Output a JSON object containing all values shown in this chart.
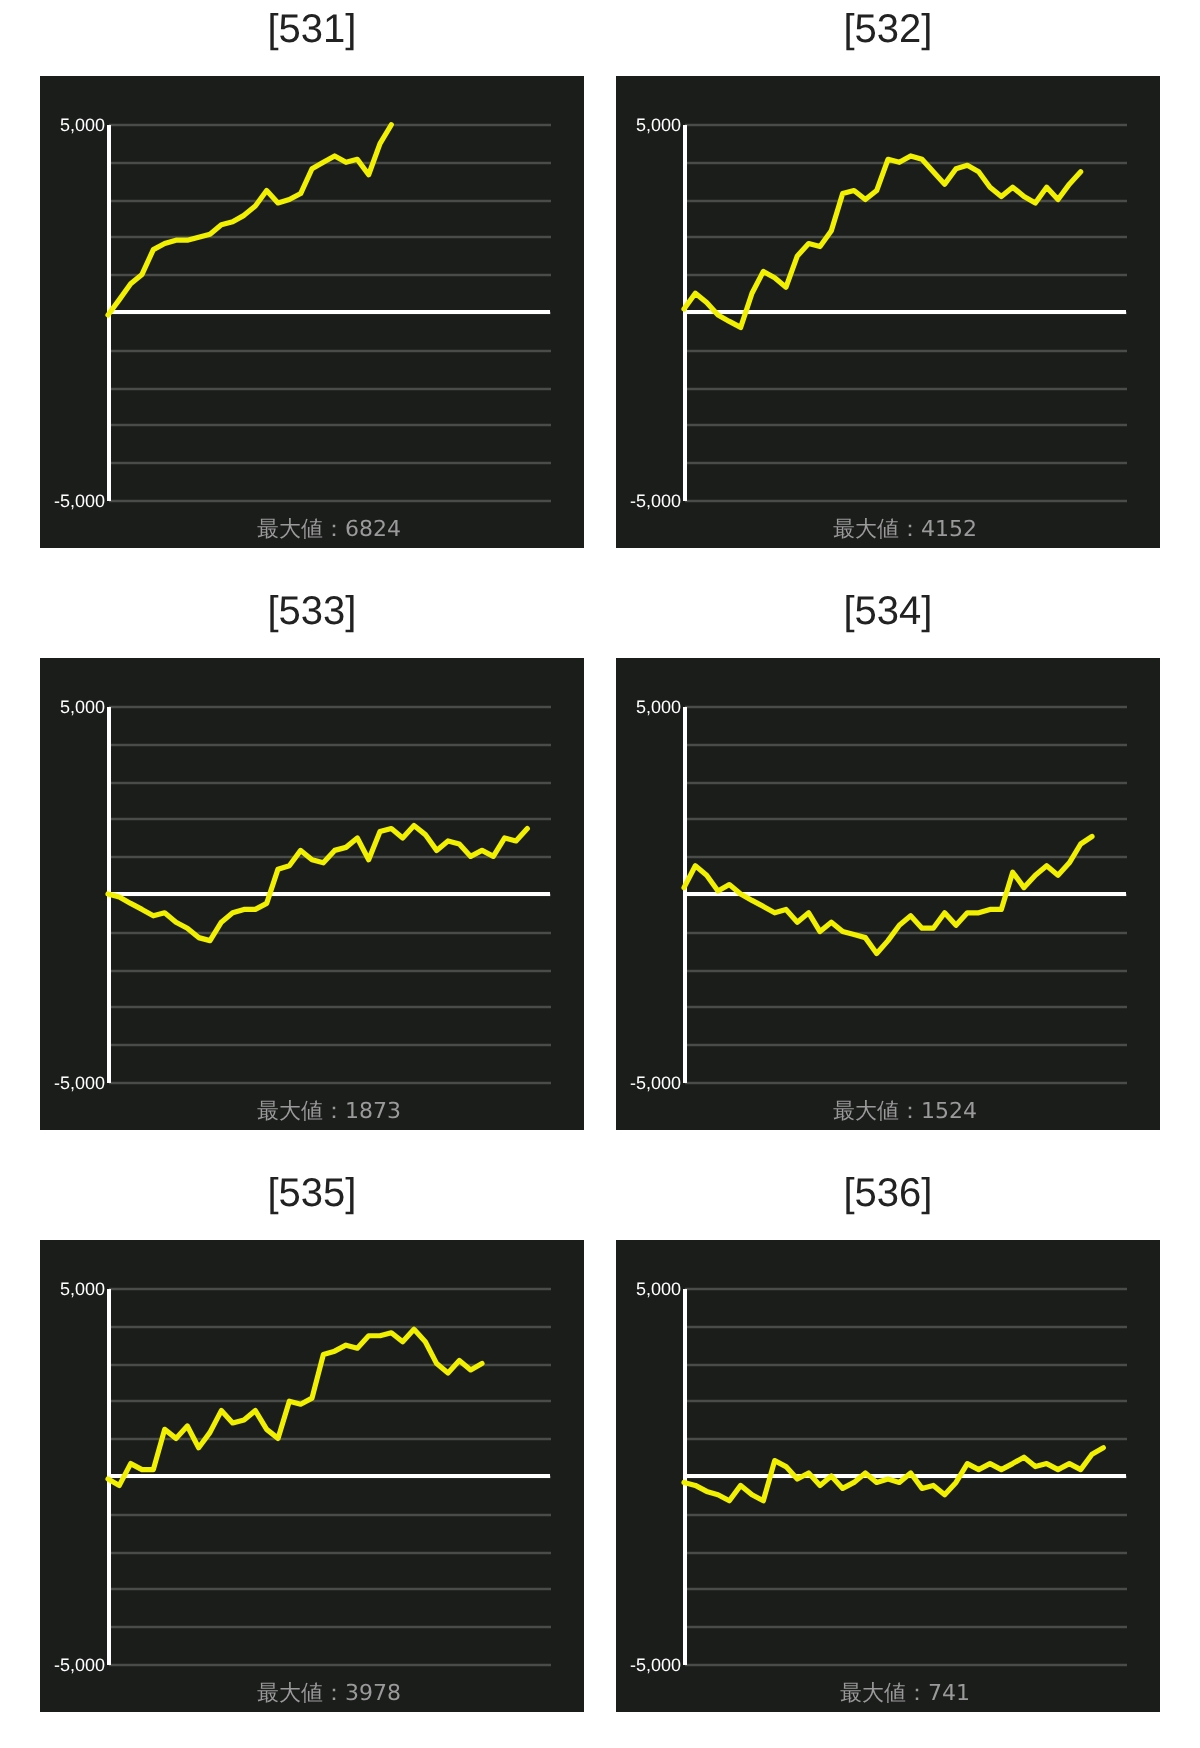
{
  "chart_data": [
    {
      "type": "line",
      "title": "[531]",
      "annotations": [
        "最大値：6824"
      ],
      "color": "#f0f000",
      "ylim": [
        -5000,
        5000
      ],
      "yticks": [
        {
          "value": -5000,
          "label": "-5,000"
        },
        {
          "value": -4000,
          "label": null
        },
        {
          "value": -3000,
          "label": null
        },
        {
          "value": -2000,
          "label": null
        },
        {
          "value": -1000,
          "label": null
        },
        {
          "value": 0,
          "label": null
        },
        {
          "value": 1000,
          "label": null
        },
        {
          "value": 2000,
          "label": null
        },
        {
          "value": 3000,
          "label": null
        },
        {
          "value": 4000,
          "label": null
        },
        {
          "value": 5000,
          "label": "5,000"
        }
      ],
      "grid": "y",
      "tick_labels": "y",
      "ref_lines": [
        {
          "axis": "y",
          "value": 0,
          "color": "#ffffff"
        }
      ],
      "categories": [
        null,
        null,
        null,
        null,
        null,
        null,
        null,
        null,
        null,
        null,
        null,
        null,
        null,
        null,
        null,
        null,
        null,
        null,
        null,
        null,
        null,
        null,
        null,
        null,
        null,
        null,
        null,
        null,
        null,
        null,
        null,
        null,
        null,
        null,
        null,
        null,
        null,
        null,
        null,
        null
      ],
      "values": [
        -80,
        330,
        750,
        1000,
        1660,
        1820,
        1910,
        1910,
        1990,
        2070,
        2320,
        2400,
        2570,
        2820,
        3230,
        2900,
        2990,
        3150,
        3810,
        3980,
        4150,
        3980,
        4060,
        3650,
        4480,
        4980,
        null,
        null,
        null,
        null,
        null,
        null,
        null,
        null,
        null,
        null,
        null,
        null,
        null,
        null
      ]
    },
    {
      "type": "line",
      "title": "[532]",
      "annotations": [
        "最大値：4152"
      ],
      "color": "#f0f000",
      "ylim": [
        -5000,
        5000
      ],
      "yticks": [
        {
          "value": -5000,
          "label": "-5,000"
        },
        {
          "value": -4000,
          "label": null
        },
        {
          "value": -3000,
          "label": null
        },
        {
          "value": -2000,
          "label": null
        },
        {
          "value": -1000,
          "label": null
        },
        {
          "value": 0,
          "label": null
        },
        {
          "value": 1000,
          "label": null
        },
        {
          "value": 2000,
          "label": null
        },
        {
          "value": 3000,
          "label": null
        },
        {
          "value": 4000,
          "label": null
        },
        {
          "value": 5000,
          "label": "5,000"
        }
      ],
      "grid": "y",
      "tick_labels": "y",
      "ref_lines": [
        {
          "axis": "y",
          "value": 0,
          "color": "#ffffff"
        }
      ],
      "categories": [
        null,
        null,
        null,
        null,
        null,
        null,
        null,
        null,
        null,
        null,
        null,
        null,
        null,
        null,
        null,
        null,
        null,
        null,
        null,
        null,
        null,
        null,
        null,
        null,
        null,
        null,
        null,
        null,
        null,
        null,
        null,
        null,
        null,
        null,
        null,
        null,
        null,
        null,
        null,
        null
      ],
      "values": [
        80,
        500,
        250,
        -80,
        -250,
        -410,
        500,
        1080,
        910,
        660,
        1490,
        1820,
        1740,
        2160,
        3150,
        3230,
        2990,
        3230,
        4060,
        3980,
        4150,
        4060,
        3730,
        3400,
        3810,
        3900,
        3730,
        3320,
        3070,
        3320,
        3070,
        2900,
        3320,
        2990,
        3400,
        3730,
        null,
        null,
        null,
        null
      ]
    },
    {
      "type": "line",
      "title": "[533]",
      "annotations": [
        "最大値：1873"
      ],
      "color": "#f0f000",
      "ylim": [
        -5000,
        5000
      ],
      "yticks": [
        {
          "value": -5000,
          "label": "-5,000"
        },
        {
          "value": -4000,
          "label": null
        },
        {
          "value": -3000,
          "label": null
        },
        {
          "value": -2000,
          "label": null
        },
        {
          "value": -1000,
          "label": null
        },
        {
          "value": 0,
          "label": null
        },
        {
          "value": 1000,
          "label": null
        },
        {
          "value": 2000,
          "label": null
        },
        {
          "value": 3000,
          "label": null
        },
        {
          "value": 4000,
          "label": null
        },
        {
          "value": 5000,
          "label": "5,000"
        }
      ],
      "grid": "y",
      "tick_labels": "y",
      "ref_lines": [
        {
          "axis": "y",
          "value": 0,
          "color": "#ffffff"
        }
      ],
      "categories": [
        null,
        null,
        null,
        null,
        null,
        null,
        null,
        null,
        null,
        null,
        null,
        null,
        null,
        null,
        null,
        null,
        null,
        null,
        null,
        null,
        null,
        null,
        null,
        null,
        null,
        null,
        null,
        null,
        null,
        null,
        null,
        null,
        null,
        null,
        null,
        null,
        null,
        null,
        null,
        null
      ],
      "values": [
        0,
        -80,
        -250,
        -410,
        -580,
        -500,
        -750,
        -910,
        -1160,
        -1240,
        -750,
        -500,
        -410,
        -410,
        -250,
        660,
        750,
        1160,
        910,
        830,
        1160,
        1240,
        1490,
        910,
        1660,
        1740,
        1490,
        1820,
        1580,
        1160,
        1410,
        1330,
        1000,
        1160,
        1000,
        1490,
        1410,
        1740,
        null,
        null
      ]
    },
    {
      "type": "line",
      "title": "[534]",
      "annotations": [
        "最大値：1524"
      ],
      "color": "#f0f000",
      "ylim": [
        -5000,
        5000
      ],
      "yticks": [
        {
          "value": -5000,
          "label": "-5,000"
        },
        {
          "value": -4000,
          "label": null
        },
        {
          "value": -3000,
          "label": null
        },
        {
          "value": -2000,
          "label": null
        },
        {
          "value": -1000,
          "label": null
        },
        {
          "value": 0,
          "label": null
        },
        {
          "value": 1000,
          "label": null
        },
        {
          "value": 2000,
          "label": null
        },
        {
          "value": 3000,
          "label": null
        },
        {
          "value": 4000,
          "label": null
        },
        {
          "value": 5000,
          "label": "5,000"
        }
      ],
      "grid": "y",
      "tick_labels": "y",
      "ref_lines": [
        {
          "axis": "y",
          "value": 0,
          "color": "#ffffff"
        }
      ],
      "categories": [
        null,
        null,
        null,
        null,
        null,
        null,
        null,
        null,
        null,
        null,
        null,
        null,
        null,
        null,
        null,
        null,
        null,
        null,
        null,
        null,
        null,
        null,
        null,
        null,
        null,
        null,
        null,
        null,
        null,
        null,
        null,
        null,
        null,
        null,
        null,
        null,
        null,
        null,
        null,
        null
      ],
      "values": [
        170,
        750,
        500,
        80,
        250,
        0,
        -170,
        -330,
        -500,
        -410,
        -750,
        -500,
        -1000,
        -750,
        -1000,
        -1080,
        -1160,
        -1580,
        -1240,
        -830,
        -580,
        -910,
        -910,
        -500,
        -830,
        -500,
        -500,
        -410,
        -410,
        580,
        170,
        500,
        750,
        500,
        830,
        1330,
        1530,
        null,
        null,
        null
      ]
    },
    {
      "type": "line",
      "title": "[535]",
      "annotations": [
        "最大値：3978"
      ],
      "color": "#f0f000",
      "ylim": [
        -5000,
        5000
      ],
      "yticks": [
        {
          "value": -5000,
          "label": "-5,000"
        },
        {
          "value": -4000,
          "label": null
        },
        {
          "value": -3000,
          "label": null
        },
        {
          "value": -2000,
          "label": null
        },
        {
          "value": -1000,
          "label": null
        },
        {
          "value": 0,
          "label": null
        },
        {
          "value": 1000,
          "label": null
        },
        {
          "value": 2000,
          "label": null
        },
        {
          "value": 3000,
          "label": null
        },
        {
          "value": 4000,
          "label": null
        },
        {
          "value": 5000,
          "label": "5,000"
        }
      ],
      "grid": "y",
      "tick_labels": "y",
      "ref_lines": [
        {
          "axis": "y",
          "value": 0,
          "color": "#ffffff"
        }
      ],
      "categories": [
        null,
        null,
        null,
        null,
        null,
        null,
        null,
        null,
        null,
        null,
        null,
        null,
        null,
        null,
        null,
        null,
        null,
        null,
        null,
        null,
        null,
        null,
        null,
        null,
        null,
        null,
        null,
        null,
        null,
        null,
        null,
        null,
        null,
        null,
        null,
        null,
        null,
        null,
        null,
        null
      ],
      "values": [
        -80,
        -250,
        330,
        170,
        170,
        1240,
        1000,
        1330,
        750,
        1160,
        1740,
        1410,
        1490,
        1740,
        1240,
        1000,
        1990,
        1910,
        2070,
        3230,
        3320,
        3480,
        3400,
        3730,
        3730,
        3810,
        3570,
        3900,
        3570,
        2990,
        2740,
        3070,
        2820,
        2990,
        null,
        null,
        null,
        null,
        null,
        null
      ]
    },
    {
      "type": "line",
      "title": "[536]",
      "annotations": [
        "最大値：741"
      ],
      "color": "#f0f000",
      "ylim": [
        -5000,
        5000
      ],
      "yticks": [
        {
          "value": -5000,
          "label": "-5,000"
        },
        {
          "value": -4000,
          "label": null
        },
        {
          "value": -3000,
          "label": null
        },
        {
          "value": -2000,
          "label": null
        },
        {
          "value": -1000,
          "label": null
        },
        {
          "value": 0,
          "label": null
        },
        {
          "value": 1000,
          "label": null
        },
        {
          "value": 2000,
          "label": null
        },
        {
          "value": 3000,
          "label": null
        },
        {
          "value": 4000,
          "label": null
        },
        {
          "value": 5000,
          "label": "5,000"
        }
      ],
      "grid": "y",
      "tick_labels": "y",
      "ref_lines": [
        {
          "axis": "y",
          "value": 0,
          "color": "#ffffff"
        }
      ],
      "categories": [
        null,
        null,
        null,
        null,
        null,
        null,
        null,
        null,
        null,
        null,
        null,
        null,
        null,
        null,
        null,
        null,
        null,
        null,
        null,
        null,
        null,
        null,
        null,
        null,
        null,
        null,
        null,
        null,
        null,
        null,
        null,
        null,
        null,
        null,
        null,
        null,
        null,
        null,
        null,
        null
      ],
      "values": [
        -170,
        -250,
        -410,
        -500,
        -660,
        -250,
        -500,
        -660,
        410,
        250,
        -80,
        80,
        -250,
        0,
        -330,
        -170,
        80,
        -170,
        -80,
        -170,
        80,
        -330,
        -250,
        -500,
        -170,
        330,
        170,
        330,
        170,
        330,
        500,
        250,
        330,
        170,
        330,
        170,
        580,
        750,
        null,
        null
      ]
    }
  ]
}
